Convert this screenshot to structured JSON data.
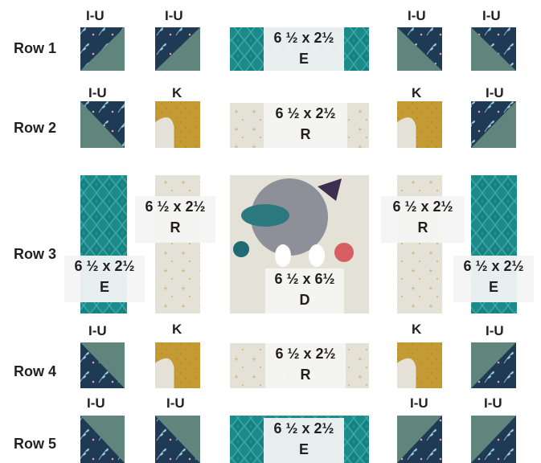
{
  "rows": [
    "Row 1",
    "Row 2",
    "Row 3",
    "Row 4",
    "Row 5"
  ],
  "piece_labels": {
    "hst": "I-U",
    "k": "K"
  },
  "dims": {
    "strip": "6 ½ x 2½",
    "center": "6 ½ x 6½"
  },
  "fabric_letters": {
    "e": "E",
    "r": "R",
    "d": "D"
  },
  "colors": {
    "navy": "#1f3a55",
    "sage": "#5f857c",
    "teal": "#1a8a8a",
    "mustard": "#c49a34",
    "cream": "#e4e1d6",
    "label_box": "#f4f4f4"
  }
}
